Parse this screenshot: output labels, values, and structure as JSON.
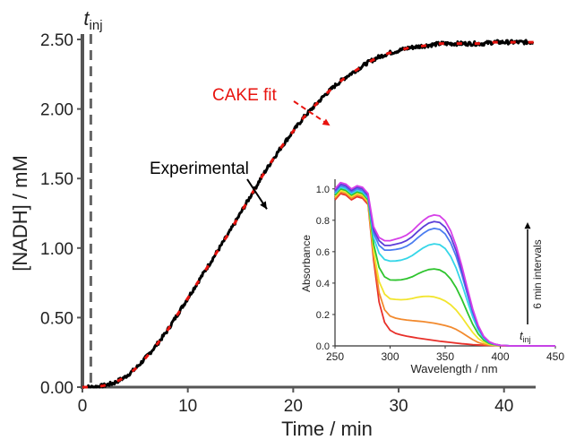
{
  "chart_data": [
    {
      "type": "line",
      "xlabel": "Time / min",
      "ylabel": "[NADH] / mM",
      "xlim": [
        0,
        43
      ],
      "ylim": [
        0,
        2.5
      ],
      "xticks": [
        0,
        10,
        20,
        30,
        40
      ],
      "yticks": [
        0.0,
        0.5,
        1.0,
        1.5,
        2.0,
        2.5
      ],
      "xtick_labels": [
        "0",
        "10",
        "20",
        "30",
        "40"
      ],
      "ytick_labels": [
        "0.00",
        "0.50",
        "1.00",
        "1.50",
        "2.00",
        "2.50"
      ],
      "grid": false,
      "series": [
        {
          "name": "Experimental",
          "color": "#000000",
          "x": [
            0,
            1,
            2,
            3,
            4,
            5,
            6,
            7,
            8,
            9,
            10,
            11,
            12,
            13,
            14,
            15,
            16,
            17,
            18,
            19,
            20,
            21,
            22,
            23,
            24,
            25,
            26,
            27,
            28,
            29,
            30,
            31,
            32,
            33,
            34,
            35,
            36,
            37,
            38,
            39,
            40,
            41,
            42,
            42.8
          ],
          "y": [
            0.0,
            0.0,
            0.01,
            0.03,
            0.07,
            0.13,
            0.21,
            0.3,
            0.4,
            0.52,
            0.64,
            0.76,
            0.88,
            1.0,
            1.12,
            1.25,
            1.38,
            1.51,
            1.63,
            1.74,
            1.84,
            1.94,
            2.02,
            2.1,
            2.17,
            2.23,
            2.28,
            2.33,
            2.37,
            2.4,
            2.42,
            2.44,
            2.45,
            2.46,
            2.47,
            2.47,
            2.47,
            2.47,
            2.47,
            2.48,
            2.48,
            2.48,
            2.48,
            2.48
          ]
        },
        {
          "name": "CAKE fit",
          "color": "#e8130e",
          "x": [
            0,
            1,
            2,
            3,
            4,
            5,
            6,
            7,
            8,
            9,
            10,
            11,
            12,
            13,
            14,
            15,
            16,
            17,
            18,
            19,
            20,
            21,
            22,
            23,
            24,
            25,
            26,
            27,
            28,
            29,
            30,
            31,
            32,
            33,
            34,
            35,
            36,
            37,
            38,
            39,
            40,
            41,
            42,
            42.8
          ],
          "y": [
            0.0,
            0.0,
            0.01,
            0.03,
            0.07,
            0.13,
            0.21,
            0.3,
            0.4,
            0.52,
            0.64,
            0.76,
            0.88,
            1.0,
            1.12,
            1.25,
            1.38,
            1.51,
            1.63,
            1.74,
            1.84,
            1.94,
            2.02,
            2.1,
            2.17,
            2.23,
            2.28,
            2.33,
            2.37,
            2.4,
            2.42,
            2.44,
            2.45,
            2.46,
            2.47,
            2.47,
            2.47,
            2.47,
            2.47,
            2.48,
            2.48,
            2.48,
            2.48,
            2.48
          ]
        }
      ],
      "annotations": [
        {
          "name": "t-inj-label",
          "text": "t",
          "subscript": "inj",
          "x": 0.8
        },
        {
          "name": "cake-fit-label",
          "text": "CAKE fit",
          "color": "#e8130e",
          "arrow_to": [
            23.5,
            1.88
          ]
        },
        {
          "name": "experimental-label",
          "text": "Experimental",
          "color": "#000000",
          "arrow_to": [
            17.5,
            1.28
          ]
        }
      ],
      "vline": {
        "x": 0.8,
        "style": "dashed",
        "color": "#666666"
      }
    },
    {
      "type": "line",
      "xlabel": "Wavelength / nm",
      "ylabel": "Absorbance",
      "xlim": [
        250,
        450
      ],
      "ylim": [
        0,
        1.05
      ],
      "xticks": [
        250,
        300,
        350,
        400,
        450
      ],
      "yticks": [
        0.0,
        0.2,
        0.4,
        0.6,
        0.8,
        1.0
      ],
      "xtick_labels": [
        "250",
        "300",
        "350",
        "400",
        "450"
      ],
      "ytick_labels": [
        "0.0",
        "0.2",
        "0.4",
        "0.6",
        "0.8",
        "1.0"
      ],
      "grid": false,
      "arrow_label": "6 min intervals",
      "arrow_sub": {
        "text": "t",
        "subscript": "inj"
      },
      "wavelengths": [
        250,
        255,
        260,
        265,
        270,
        275,
        280,
        285,
        290,
        295,
        300,
        305,
        310,
        315,
        320,
        325,
        330,
        335,
        340,
        345,
        350,
        355,
        360,
        365,
        370,
        375,
        380,
        385,
        390,
        395,
        400,
        410,
        420,
        430,
        440,
        450
      ],
      "series": [
        {
          "color": "#e8302a",
          "values": [
            0.93,
            0.97,
            0.96,
            0.93,
            0.95,
            0.94,
            0.9,
            0.55,
            0.28,
            0.15,
            0.1,
            0.08,
            0.07,
            0.062,
            0.056,
            0.05,
            0.045,
            0.04,
            0.035,
            0.03,
            0.026,
            0.022,
            0.018,
            0.014,
            0.011,
            0.008,
            0.006,
            0.004,
            0.003,
            0.002,
            0.001,
            0,
            0,
            0,
            0,
            0
          ]
        },
        {
          "color": "#f28a2e",
          "values": [
            0.94,
            0.98,
            0.97,
            0.94,
            0.96,
            0.95,
            0.91,
            0.58,
            0.34,
            0.23,
            0.19,
            0.177,
            0.17,
            0.165,
            0.161,
            0.158,
            0.155,
            0.15,
            0.145,
            0.138,
            0.13,
            0.12,
            0.105,
            0.085,
            0.062,
            0.04,
            0.022,
            0.011,
            0.006,
            0.003,
            0.002,
            0,
            0,
            0,
            0,
            0
          ]
        },
        {
          "color": "#f2e52e",
          "values": [
            0.95,
            0.99,
            0.98,
            0.95,
            0.97,
            0.96,
            0.92,
            0.61,
            0.41,
            0.33,
            0.3,
            0.296,
            0.294,
            0.296,
            0.302,
            0.31,
            0.315,
            0.316,
            0.312,
            0.302,
            0.286,
            0.262,
            0.228,
            0.184,
            0.134,
            0.086,
            0.047,
            0.022,
            0.01,
            0.004,
            0.002,
            0,
            0,
            0,
            0,
            0
          ]
        },
        {
          "color": "#2ec42e",
          "values": [
            0.96,
            1.0,
            0.99,
            0.96,
            0.98,
            0.97,
            0.93,
            0.65,
            0.5,
            0.44,
            0.42,
            0.419,
            0.421,
            0.428,
            0.44,
            0.458,
            0.474,
            0.486,
            0.49,
            0.484,
            0.464,
            0.426,
            0.37,
            0.298,
            0.216,
            0.138,
            0.076,
            0.036,
            0.016,
            0.007,
            0.003,
            0,
            0,
            0,
            0,
            0
          ]
        },
        {
          "color": "#35d6e8",
          "values": [
            0.97,
            1.01,
            1.0,
            0.97,
            0.99,
            0.98,
            0.94,
            0.69,
            0.59,
            0.55,
            0.54,
            0.541,
            0.546,
            0.557,
            0.575,
            0.6,
            0.624,
            0.642,
            0.65,
            0.645,
            0.62,
            0.57,
            0.495,
            0.398,
            0.289,
            0.184,
            0.101,
            0.048,
            0.021,
            0.009,
            0.004,
            0,
            0,
            0,
            0,
            0
          ]
        },
        {
          "color": "#4a7df0",
          "values": [
            0.98,
            1.02,
            1.01,
            0.98,
            1.0,
            0.99,
            0.95,
            0.72,
            0.64,
            0.61,
            0.61,
            0.614,
            0.621,
            0.635,
            0.657,
            0.688,
            0.716,
            0.738,
            0.748,
            0.742,
            0.713,
            0.656,
            0.57,
            0.458,
            0.332,
            0.211,
            0.116,
            0.055,
            0.024,
            0.01,
            0.004,
            0,
            0,
            0,
            0,
            0
          ]
        },
        {
          "color": "#5b3ed8",
          "values": [
            0.99,
            1.03,
            1.02,
            0.99,
            1.01,
            1.0,
            0.96,
            0.74,
            0.67,
            0.64,
            0.64,
            0.648,
            0.656,
            0.671,
            0.695,
            0.728,
            0.758,
            0.782,
            0.792,
            0.786,
            0.756,
            0.696,
            0.604,
            0.486,
            0.353,
            0.224,
            0.123,
            0.058,
            0.025,
            0.011,
            0.004,
            0,
            0,
            0,
            0,
            0
          ]
        },
        {
          "color": "#d640e8",
          "values": [
            1.0,
            1.04,
            1.03,
            1.0,
            1.02,
            1.01,
            0.97,
            0.76,
            0.69,
            0.67,
            0.67,
            0.68,
            0.69,
            0.706,
            0.731,
            0.766,
            0.798,
            0.823,
            0.834,
            0.828,
            0.796,
            0.733,
            0.636,
            0.512,
            0.372,
            0.236,
            0.13,
            0.061,
            0.027,
            0.011,
            0.004,
            0,
            0,
            0,
            0,
            0
          ]
        }
      ]
    }
  ]
}
